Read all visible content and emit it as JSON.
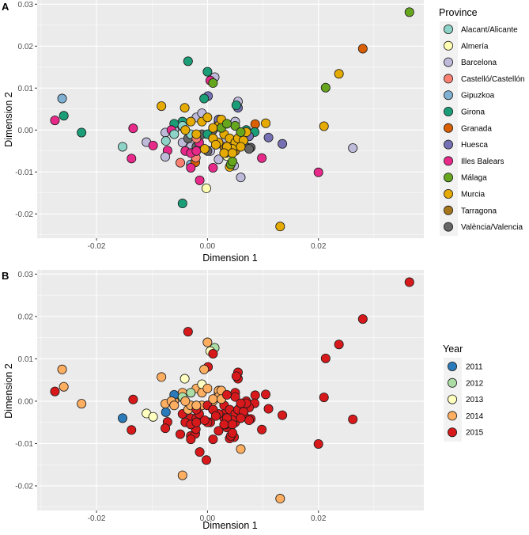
{
  "chart_data": [
    {
      "type": "scatter",
      "panel_label": "A",
      "xlabel": "Dimension 1",
      "ylabel": "Dimension 2",
      "xlim": [
        -0.0307,
        0.039
      ],
      "ylim": [
        -0.0258,
        0.031
      ],
      "xticks": [
        -0.02,
        0.0,
        0.02
      ],
      "xtick_labels": [
        "-0.02",
        "0.00",
        "0.02"
      ],
      "yticks": [
        -0.02,
        -0.01,
        0.0,
        0.01,
        0.02,
        0.03
      ],
      "ytick_labels": [
        "-0.02",
        "-0.01",
        "0.00",
        "0.01",
        "0.02",
        "0.03"
      ],
      "color_by": "province",
      "legend_title": "Province",
      "legend_position": "right",
      "grid": true
    },
    {
      "type": "scatter",
      "panel_label": "B",
      "xlabel": "Dimension 1",
      "ylabel": "Dimension 2",
      "xlim": [
        -0.0307,
        0.039
      ],
      "ylim": [
        -0.0258,
        0.031
      ],
      "xticks": [
        -0.02,
        0.0,
        0.02
      ],
      "xtick_labels": [
        "-0.02",
        "0.00",
        "0.02"
      ],
      "yticks": [
        -0.02,
        -0.01,
        0.0,
        0.01,
        0.02,
        0.03
      ],
      "ytick_labels": [
        "-0.02",
        "-0.01",
        "0.00",
        "0.01",
        "0.02",
        "0.03"
      ],
      "color_by": "year",
      "legend_title": "Year",
      "legend_position": "right",
      "grid": true
    }
  ],
  "provinces": [
    {
      "name": "Alacant/Alicante",
      "color": "#8DD3C7"
    },
    {
      "name": "Almería",
      "color": "#FFFFB3"
    },
    {
      "name": "Barcelona",
      "color": "#BEBADA"
    },
    {
      "name": "Castelló/Castellón",
      "color": "#FB8072"
    },
    {
      "name": "Gipuzkoa",
      "color": "#80B1D3"
    },
    {
      "name": "Girona",
      "color": "#1B9E77"
    },
    {
      "name": "Granada",
      "color": "#D95F02"
    },
    {
      "name": "Huesca",
      "color": "#7570B3"
    },
    {
      "name": "Illes Balears",
      "color": "#E7298A"
    },
    {
      "name": "Málaga",
      "color": "#66A61E"
    },
    {
      "name": "Murcia",
      "color": "#E6AB02"
    },
    {
      "name": "Tarragona",
      "color": "#A6761D"
    },
    {
      "name": "València/Valencia",
      "color": "#666666"
    }
  ],
  "years": [
    {
      "name": "2011",
      "color": "#2B7BBA"
    },
    {
      "name": "2012",
      "color": "#ABDDA4"
    },
    {
      "name": "2013",
      "color": "#FFFFBF"
    },
    {
      "name": "2014",
      "color": "#FDAE61"
    },
    {
      "name": "2015",
      "color": "#D7191C"
    }
  ],
  "points_columns": [
    "dim1",
    "dim2",
    "province_index",
    "year"
  ],
  "points": [
    [
      -0.0262,
      0.0075,
      4,
      2014
    ],
    [
      -0.0259,
      0.0034,
      5,
      2014
    ],
    [
      -0.0275,
      0.0023,
      8,
      2015
    ],
    [
      -0.0227,
      -0.0006,
      5,
      2014
    ],
    [
      -0.0153,
      -0.004,
      0,
      2011
    ],
    [
      -0.0137,
      -0.0068,
      8,
      2015
    ],
    [
      -0.0134,
      0.0004,
      8,
      2015
    ],
    [
      -0.011,
      -0.0029,
      2,
      2013
    ],
    [
      -0.0098,
      -0.0037,
      8,
      2013
    ],
    [
      -0.0083,
      0.0057,
      10,
      2014
    ],
    [
      -0.0041,
      0.0053,
      10,
      2013
    ],
    [
      -0.0076,
      -0.0006,
      2,
      2014
    ],
    [
      -0.0075,
      -0.0026,
      0,
      2011
    ],
    [
      -0.0072,
      -0.0049,
      8,
      2015
    ],
    [
      -0.0076,
      -0.0064,
      2,
      2015
    ],
    [
      -0.0049,
      -0.0078,
      3,
      2015
    ],
    [
      -0.003,
      -0.0082,
      4,
      2015
    ],
    [
      -0.0022,
      -0.0077,
      6,
      2015
    ],
    [
      -0.0021,
      -0.0066,
      3,
      2015
    ],
    [
      -0.003,
      -0.009,
      8,
      2015
    ],
    [
      -0.0035,
      0.0164,
      5,
      2015
    ],
    [
      0.0,
      0.0139,
      5,
      2014
    ],
    [
      0.0013,
      0.0126,
      2,
      2012
    ],
    [
      0.0005,
      0.0118,
      8,
      2013
    ],
    [
      0.001,
      0.0112,
      9,
      2015
    ],
    [
      0.0001,
      0.0081,
      7,
      2015
    ],
    [
      -0.0006,
      0.0075,
      5,
      2014
    ],
    [
      -0.0045,
      -0.0175,
      5,
      2014
    ],
    [
      -0.0002,
      -0.0139,
      1,
      2015
    ],
    [
      -0.0014,
      -0.012,
      8,
      2015
    ],
    [
      0.0055,
      0.0068,
      2,
      2015
    ],
    [
      0.0055,
      0.0053,
      7,
      2015
    ],
    [
      0.0052,
      0.0059,
      5,
      2015
    ],
    [
      0.0135,
      -0.0033,
      7,
      2015
    ],
    [
      0.011,
      -0.0018,
      7,
      2015
    ],
    [
      0.0105,
      0.0016,
      10,
      2015
    ],
    [
      0.0086,
      0.0014,
      6,
      2015
    ],
    [
      0.0098,
      -0.0067,
      8,
      2015
    ],
    [
      0.006,
      -0.0113,
      2,
      2014
    ],
    [
      0.0048,
      -0.0085,
      2,
      2015
    ],
    [
      0.004,
      -0.0088,
      10,
      2015
    ],
    [
      0.0042,
      -0.0082,
      9,
      2015
    ],
    [
      0.0035,
      -0.0062,
      1,
      2015
    ],
    [
      0.0033,
      -0.0055,
      12,
      2015
    ],
    [
      0.0066,
      -0.0034,
      12,
      2015
    ],
    [
      0.0078,
      -0.0042,
      12,
      2015
    ],
    [
      -0.005,
      0.001,
      2,
      2012
    ],
    [
      -0.006,
      0.0,
      2,
      2014
    ],
    [
      -0.002,
      0.003,
      2,
      2014
    ],
    [
      -0.001,
      0.004,
      2,
      2013
    ],
    [
      0.003,
      -0.003,
      2,
      2015
    ],
    [
      0.0075,
      -0.001,
      2,
      2015
    ],
    [
      0.002,
      -0.007,
      2,
      2015
    ],
    [
      -0.003,
      -0.004,
      2,
      2015
    ],
    [
      0.005,
      0.002,
      2,
      2015
    ],
    [
      -0.0045,
      -0.003,
      2,
      2015
    ],
    [
      0.0005,
      -0.005,
      2,
      2015
    ],
    [
      -0.002,
      -0.004,
      12,
      2015
    ],
    [
      0.0,
      -0.005,
      12,
      2015
    ],
    [
      -0.0035,
      -0.002,
      12,
      2014
    ],
    [
      0.001,
      0.0,
      12,
      2014
    ],
    [
      -0.001,
      -0.001,
      12,
      2014
    ],
    [
      0.002,
      0.002,
      12,
      2014
    ],
    [
      0.0075,
      -0.0045,
      12,
      2015
    ],
    [
      -0.0045,
      0.002,
      5,
      2014
    ],
    [
      0.0,
      -0.001,
      5,
      2015
    ],
    [
      0.0085,
      -0.0005,
      5,
      2015
    ],
    [
      0.007,
      0.0,
      5,
      2015
    ],
    [
      -0.006,
      0.0015,
      5,
      2011
    ],
    [
      -0.0065,
      0.0,
      8,
      2014
    ],
    [
      -0.004,
      -0.005,
      8,
      2015
    ],
    [
      -0.003,
      -0.0055,
      8,
      2015
    ],
    [
      -0.0015,
      -0.003,
      8,
      2015
    ],
    [
      0.001,
      -0.009,
      8,
      2015
    ],
    [
      -0.002,
      -0.005,
      8,
      2015
    ],
    [
      -0.006,
      -0.001,
      0,
      2014
    ],
    [
      -0.0045,
      0.001,
      0,
      2012
    ],
    [
      -0.003,
      -0.001,
      0,
      2014
    ],
    [
      0.003,
      -0.004,
      11,
      2015
    ],
    [
      0.001,
      -0.002,
      11,
      2015
    ],
    [
      0.005,
      -0.005,
      11,
      2015
    ],
    [
      0.0075,
      -0.0015,
      7,
      2015
    ],
    [
      0.002,
      0.0025,
      7,
      2014
    ],
    [
      -0.002,
      -0.002,
      3,
      2015
    ],
    [
      0.004,
      -0.005,
      6,
      2015
    ],
    [
      0.002,
      0.001,
      10,
      2014
    ],
    [
      0.003,
      -0.001,
      10,
      2015
    ],
    [
      0.004,
      -0.002,
      10,
      2015
    ],
    [
      0.005,
      -0.003,
      10,
      2015
    ],
    [
      0.006,
      -0.001,
      10,
      2015
    ],
    [
      0.0045,
      -0.0045,
      10,
      2015
    ],
    [
      0.0035,
      -0.004,
      10,
      2015
    ],
    [
      0.003,
      -0.0055,
      10,
      2015
    ],
    [
      0.0055,
      -0.002,
      10,
      2015
    ],
    [
      0.0065,
      -0.0025,
      10,
      2015
    ],
    [
      0.007,
      -0.0005,
      10,
      2015
    ],
    [
      0.002,
      -0.003,
      10,
      2015
    ],
    [
      0.001,
      -0.002,
      10,
      2015
    ],
    [
      -0.001,
      0.002,
      10,
      2014
    ],
    [
      0.0,
      0.003,
      10,
      2014
    ],
    [
      -0.002,
      -0.001,
      10,
      2014
    ],
    [
      -0.004,
      0.0,
      10,
      2014
    ],
    [
      -0.003,
      0.002,
      10,
      2012
    ],
    [
      0.001,
      0.0005,
      10,
      2014
    ],
    [
      0.0045,
      -0.0055,
      10,
      2015
    ],
    [
      0.0025,
      0.0025,
      10,
      2014
    ],
    [
      0.0015,
      -0.0035,
      10,
      2015
    ],
    [
      0.006,
      -0.004,
      10,
      2015
    ],
    [
      -0.0005,
      -0.0045,
      10,
      2015
    ],
    [
      0.005,
      0.001,
      9,
      2015
    ],
    [
      0.0025,
      0.0005,
      9,
      2014
    ],
    [
      0.006,
      -0.0005,
      9,
      2015
    ],
    [
      0.0045,
      -0.0075,
      9,
      2015
    ],
    [
      0.0035,
      0.0015,
      9,
      2015
    ],
    [
      0.0364,
      0.0281,
      9,
      2015
    ],
    [
      0.028,
      0.0194,
      6,
      2015
    ],
    [
      0.0237,
      0.0134,
      10,
      2015
    ],
    [
      0.0213,
      0.0101,
      9,
      2015
    ],
    [
      0.021,
      0.0009,
      10,
      2015
    ],
    [
      0.0262,
      -0.0043,
      2,
      2015
    ],
    [
      0.02,
      -0.0101,
      8,
      2015
    ],
    [
      0.0131,
      -0.023,
      10,
      2014
    ]
  ]
}
